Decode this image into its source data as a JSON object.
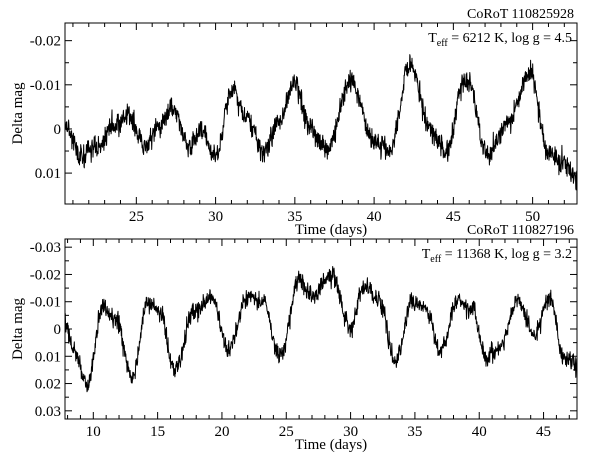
{
  "chart_data": [
    {
      "type": "line",
      "star_id": "CoRoT 110825928",
      "teff_symbol": "T",
      "teff_subscript": "eff",
      "params_value": " = 6212 K, log g = 4.5",
      "xlabel": "Time (days)",
      "ylabel": "Delta mag",
      "xlim": [
        20.5,
        52.8
      ],
      "ylim": [
        0.017,
        -0.024
      ],
      "y_inverted": true,
      "xticks": [
        25,
        30,
        35,
        40,
        45,
        50
      ],
      "yticks": [
        -0.02,
        -0.01,
        0,
        0.01
      ],
      "ytick_labels": [
        "-0.02",
        "-0.01",
        "0",
        "0.01"
      ],
      "noise_amplitude": 0.0022,
      "series": [
        {
          "x": [
            20.5,
            21.5,
            22.5,
            23.5,
            24.5,
            25.5,
            26.3,
            27.3,
            28.3,
            29.1,
            30.0,
            31.0,
            32.0,
            33.0,
            34.0,
            35.0,
            36.0,
            37.0,
            38.5,
            40.0,
            41.0,
            42.3,
            43.5,
            44.5,
            45.8,
            47.2,
            48.5,
            49.8,
            51.0,
            52.0,
            52.8
          ],
          "y": [
            -0.001,
            0.006,
            0.004,
            0.0,
            -0.003,
            0.004,
            0.0,
            -0.005,
            0.004,
            0.0,
            0.006,
            -0.009,
            -0.002,
            0.005,
            -0.002,
            -0.01,
            0.0,
            0.005,
            -0.011,
            0.003,
            0.005,
            -0.015,
            0.0,
            0.005,
            -0.011,
            0.006,
            -0.002,
            -0.013,
            0.005,
            0.008,
            0.012
          ]
        }
      ]
    },
    {
      "type": "line",
      "star_id": "CoRoT 110827196",
      "teff_symbol": "T",
      "teff_subscript": "eff",
      "params_value": " = 11368 K, log g = 3.2",
      "xlabel": "Time (days)",
      "ylabel": "Delta mag",
      "xlim": [
        7.8,
        47.6
      ],
      "ylim": [
        0.033,
        -0.033
      ],
      "y_inverted": true,
      "xticks": [
        10,
        15,
        20,
        25,
        30,
        35,
        40,
        45
      ],
      "yticks": [
        -0.03,
        -0.02,
        -0.01,
        0,
        0.01,
        0.02,
        0.03
      ],
      "ytick_labels": [
        "-0.03",
        "-0.02",
        "-0.01",
        "0",
        "0.01",
        "0.02",
        "0.03"
      ],
      "noise_amplitude": 0.003,
      "series": [
        {
          "x": [
            7.8,
            8.5,
            9.5,
            10.8,
            11.8,
            13.0,
            14.2,
            15.2,
            16.3,
            17.8,
            19.2,
            20.5,
            22.0,
            23.2,
            24.5,
            26.0,
            27.0,
            28.5,
            30.0,
            31.0,
            32.3,
            33.5,
            34.8,
            35.8,
            37.0,
            38.3,
            39.5,
            40.5,
            41.5,
            43.0,
            44.3,
            45.5,
            46.5,
            47.6
          ],
          "y": [
            -0.002,
            0.008,
            0.02,
            -0.008,
            -0.003,
            0.018,
            -0.009,
            -0.006,
            0.015,
            -0.006,
            -0.012,
            0.008,
            -0.012,
            -0.01,
            0.01,
            -0.018,
            -0.012,
            -0.02,
            0.0,
            -0.016,
            -0.01,
            0.012,
            -0.01,
            -0.008,
            0.008,
            -0.01,
            -0.007,
            0.01,
            0.008,
            -0.01,
            0.002,
            -0.012,
            0.01,
            0.014
          ]
        }
      ]
    }
  ]
}
